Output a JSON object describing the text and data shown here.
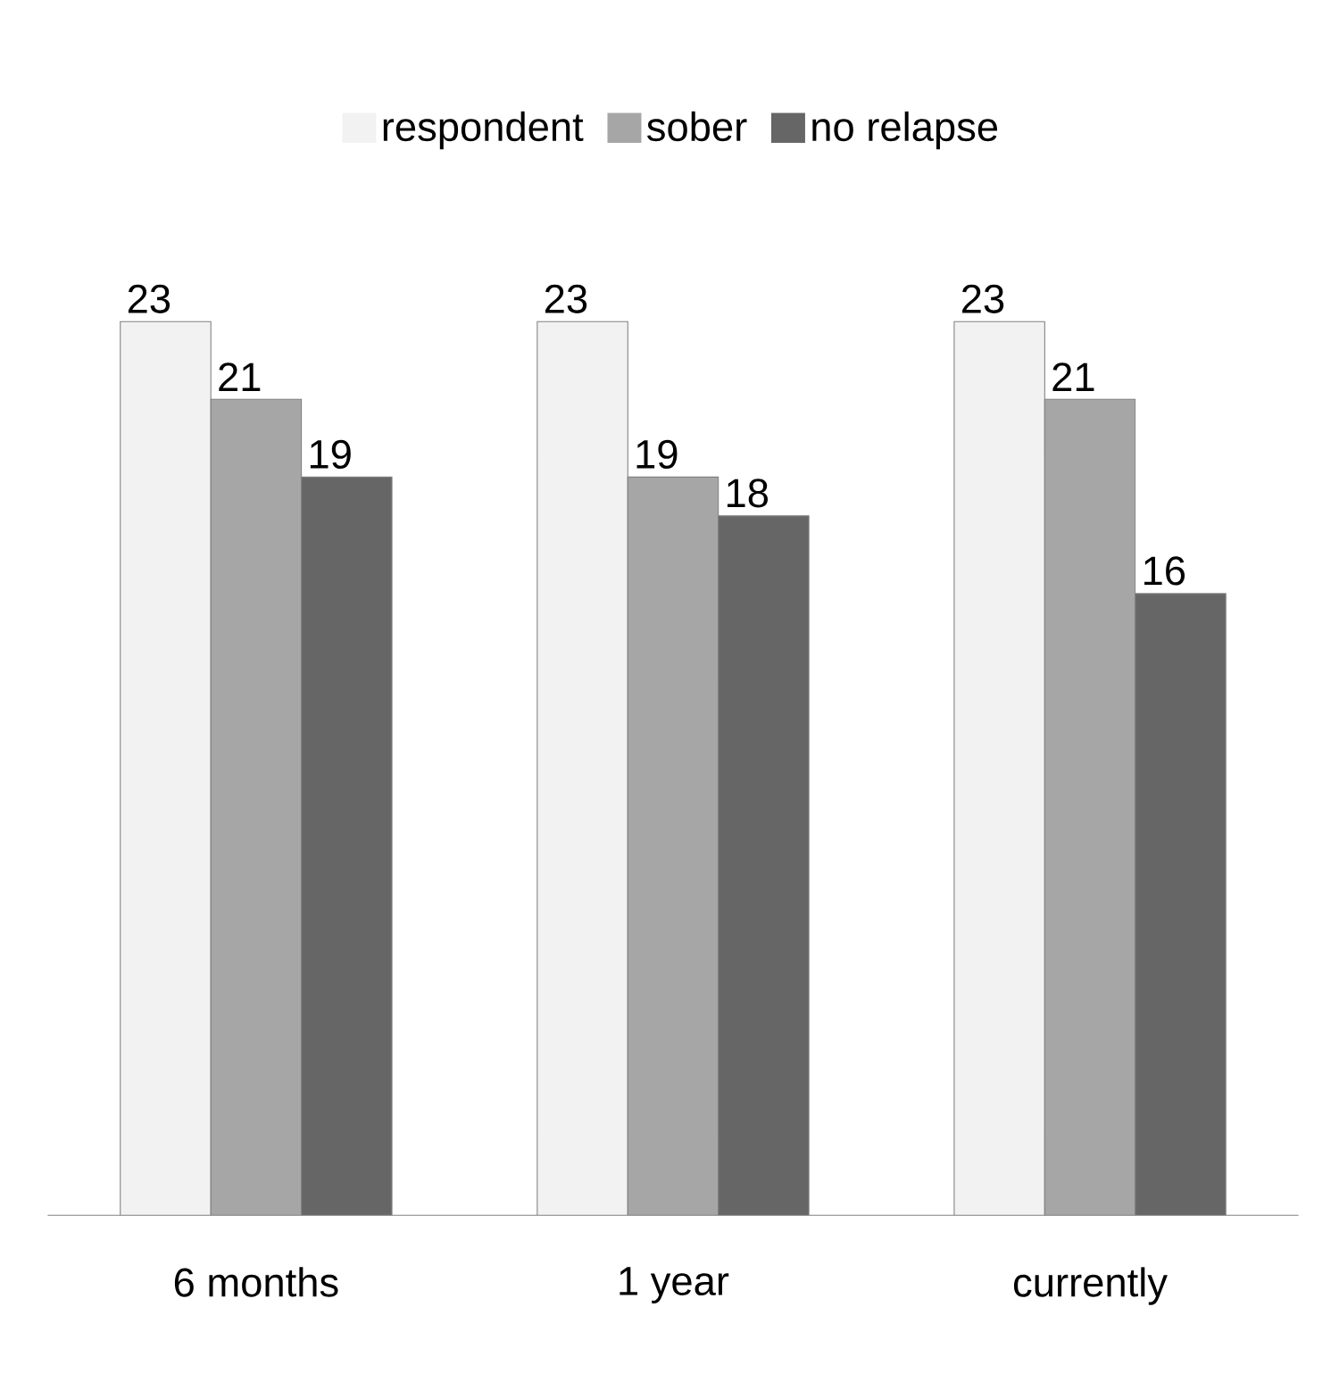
{
  "chart_data": {
    "type": "bar",
    "categories": [
      "6 months",
      "1 year",
      "currently"
    ],
    "series": [
      {
        "name": "respondent",
        "color": "#f2f2f2",
        "values": [
          23,
          23,
          23
        ]
      },
      {
        "name": "sober",
        "color": "#a6a6a6",
        "values": [
          21,
          19,
          21
        ]
      },
      {
        "name": "no relapse",
        "color": "#666666",
        "values": [
          19,
          18,
          16
        ]
      }
    ],
    "data_labels": true,
    "legend": "top"
  }
}
